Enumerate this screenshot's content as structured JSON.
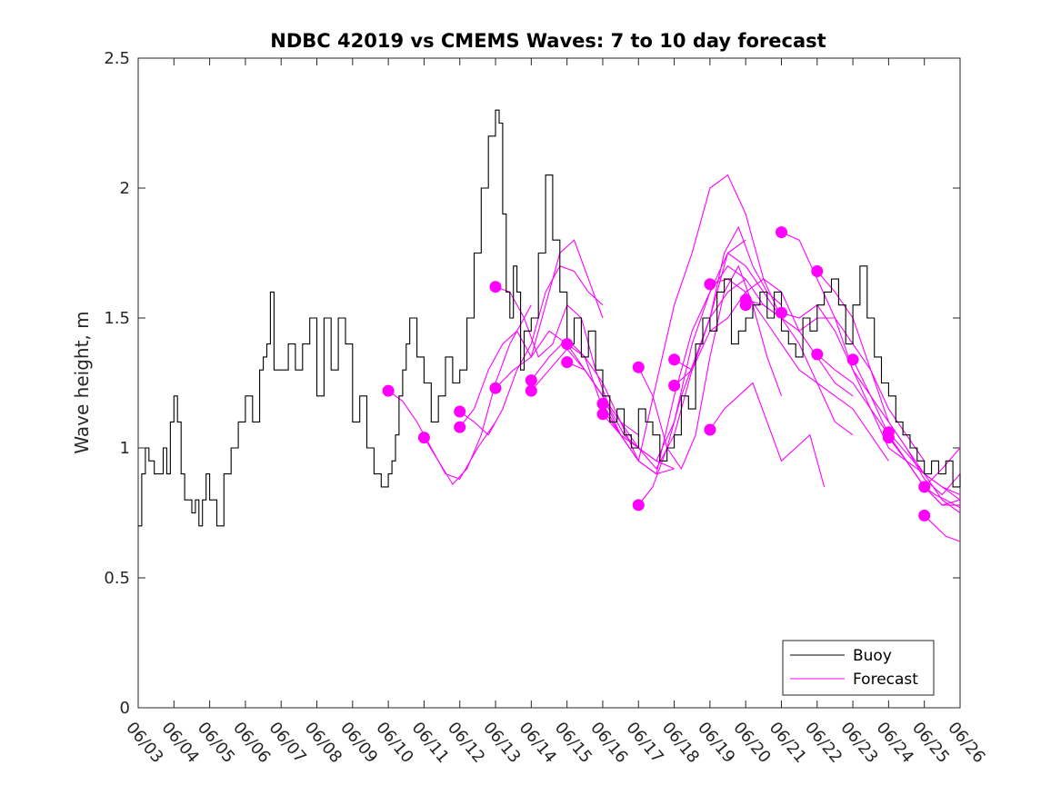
{
  "chart_data": {
    "type": "line",
    "title": "NDBC 42019 vs CMEMS Waves: 7 to 10 day forecast",
    "xlabel": "",
    "ylabel": "Wave height, m",
    "xlim": [
      "06/03",
      "06/26"
    ],
    "ylim": [
      0,
      2.5
    ],
    "yticks": [
      "0",
      "0.5",
      "1",
      "1.5",
      "2",
      "2.5"
    ],
    "xticks": [
      "06/03",
      "06/04",
      "06/05",
      "06/06",
      "06/07",
      "06/08",
      "06/09",
      "06/10",
      "06/11",
      "06/12",
      "06/13",
      "06/14",
      "06/15",
      "06/16",
      "06/17",
      "06/18",
      "06/19",
      "06/20",
      "06/21",
      "06/22",
      "06/23",
      "06/24",
      "06/25",
      "06/26"
    ],
    "grid": false,
    "legend": {
      "placement": "bottom-right",
      "entries": [
        "Buoy",
        "Forecast"
      ]
    },
    "colors": {
      "buoy": "#000000",
      "forecast": "#ff00ff"
    },
    "series": [
      {
        "name": "Buoy",
        "x": [
          0.0,
          0.1,
          0.2,
          0.3,
          0.45,
          0.6,
          0.7,
          0.8,
          0.9,
          1.0,
          1.1,
          1.2,
          1.3,
          1.4,
          1.5,
          1.6,
          1.7,
          1.8,
          1.9,
          2.0,
          2.2,
          2.4,
          2.6,
          2.8,
          3.0,
          3.2,
          3.4,
          3.5,
          3.6,
          3.7,
          3.8,
          4.0,
          4.2,
          4.4,
          4.6,
          4.8,
          5.0,
          5.2,
          5.4,
          5.6,
          5.8,
          6.0,
          6.2,
          6.4,
          6.6,
          6.8,
          7.0,
          7.1,
          7.2,
          7.3,
          7.4,
          7.5,
          7.6,
          7.8,
          8.0,
          8.2,
          8.4,
          8.6,
          8.8,
          9.0,
          9.2,
          9.4,
          9.6,
          9.8,
          10.0,
          10.1,
          10.2,
          10.3,
          10.4,
          10.5,
          10.6,
          10.7,
          10.8,
          11.0,
          11.2,
          11.4,
          11.6,
          11.8,
          12.0,
          12.2,
          12.4,
          12.6,
          12.8,
          13.0,
          13.2,
          13.4,
          13.6,
          13.8,
          14.0,
          14.2,
          14.4,
          14.6,
          14.8,
          15.0,
          15.2,
          15.4,
          15.6,
          15.8,
          16.0,
          16.2,
          16.4,
          16.6,
          16.8,
          17.0,
          17.2,
          17.4,
          17.6,
          17.8,
          18.0,
          18.2,
          18.4,
          18.6,
          18.8,
          19.0,
          19.2,
          19.4,
          19.6,
          19.8,
          20.0,
          20.2,
          20.4,
          20.6,
          20.8,
          21.0,
          21.2,
          21.4,
          21.6,
          21.8,
          22.0,
          22.2,
          22.4,
          22.6,
          22.8,
          23.0
        ],
        "values": [
          0.7,
          0.9,
          1.0,
          0.95,
          0.9,
          0.9,
          1.0,
          0.9,
          1.1,
          1.2,
          1.1,
          0.9,
          0.8,
          0.8,
          0.75,
          0.8,
          0.7,
          0.8,
          0.9,
          0.8,
          0.7,
          0.9,
          1.0,
          1.1,
          1.2,
          1.1,
          1.3,
          1.35,
          1.4,
          1.6,
          1.3,
          1.3,
          1.4,
          1.3,
          1.4,
          1.5,
          1.2,
          1.5,
          1.3,
          1.5,
          1.4,
          1.1,
          1.2,
          1.0,
          0.9,
          0.85,
          0.9,
          0.95,
          1.05,
          1.2,
          1.3,
          1.4,
          1.5,
          1.35,
          1.25,
          1.1,
          1.2,
          1.35,
          1.25,
          1.3,
          1.5,
          1.75,
          2.0,
          2.2,
          2.3,
          2.25,
          1.9,
          1.6,
          1.5,
          1.7,
          1.6,
          1.3,
          1.45,
          1.5,
          1.75,
          2.05,
          1.8,
          1.6,
          1.4,
          1.5,
          1.35,
          1.45,
          1.3,
          1.2,
          1.1,
          1.15,
          1.05,
          1.0,
          1.15,
          1.1,
          1.05,
          0.95,
          1.0,
          1.05,
          1.2,
          1.15,
          1.4,
          1.5,
          1.45,
          1.6,
          1.65,
          1.4,
          1.45,
          1.5,
          1.55,
          1.6,
          1.5,
          1.6,
          1.45,
          1.4,
          1.35,
          1.5,
          1.45,
          1.55,
          1.6,
          1.65,
          1.55,
          1.4,
          1.55,
          1.7,
          1.5,
          1.35,
          1.25,
          1.2,
          1.1,
          1.05,
          1.0,
          0.95,
          0.9,
          0.95,
          0.9,
          0.95,
          0.85,
          0.9
        ]
      },
      {
        "name": "Forecast",
        "lines": [
          {
            "x": [
              7.0,
              7.4,
              7.8,
              8.2,
              8.6,
              9.0,
              9.5,
              10.0
            ],
            "values": [
              1.22,
              1.18,
              1.1,
              1.0,
              0.9,
              0.88,
              1.0,
              1.1
            ]
          },
          {
            "x": [
              8.0,
              8.4,
              8.8,
              9.2,
              9.6,
              10.0,
              10.4,
              10.8,
              11.0
            ],
            "values": [
              1.04,
              0.95,
              0.86,
              0.92,
              1.05,
              1.25,
              1.4,
              1.5,
              1.55
            ]
          },
          {
            "x": [
              9.0,
              9.4,
              9.8,
              10.2,
              10.6,
              11.0,
              11.4,
              11.8,
              12.2,
              12.6,
              13.0
            ],
            "values": [
              1.14,
              1.1,
              1.05,
              1.15,
              1.3,
              1.4,
              1.6,
              1.7,
              1.68,
              1.6,
              1.55
            ]
          },
          {
            "x": [
              9.0,
              9.4,
              9.8,
              10.2,
              10.6,
              11.0,
              11.4,
              11.8,
              12.2,
              12.6,
              13.0
            ],
            "values": [
              1.08,
              1.15,
              1.3,
              1.4,
              1.45,
              1.35,
              1.55,
              1.75,
              1.8,
              1.65,
              1.5
            ]
          },
          {
            "x": [
              10.0,
              10.4,
              10.8,
              11.2,
              11.6,
              12.0,
              12.4,
              12.8,
              13.2,
              13.6,
              14.0
            ],
            "values": [
              1.62,
              1.6,
              1.5,
              1.35,
              1.4,
              1.55,
              1.5,
              1.3,
              1.15,
              1.05,
              1.0
            ]
          },
          {
            "x": [
              10.0,
              10.5,
              11.0,
              11.5,
              12.0,
              12.5,
              13.0,
              13.5,
              14.0
            ],
            "values": [
              1.23,
              1.3,
              1.35,
              1.45,
              1.4,
              1.3,
              1.2,
              1.1,
              1.05
            ]
          },
          {
            "x": [
              11.0,
              11.5,
              12.0,
              12.5,
              13.0,
              13.5,
              14.0,
              14.5,
              15.0
            ],
            "values": [
              1.26,
              1.35,
              1.42,
              1.35,
              1.15,
              1.05,
              1.0,
              0.95,
              0.92
            ]
          },
          {
            "x": [
              11.0,
              11.5,
              12.0,
              12.5,
              13.0,
              13.5,
              14.0,
              14.5,
              15.0
            ],
            "values": [
              1.22,
              1.3,
              1.38,
              1.3,
              1.2,
              1.1,
              0.95,
              0.9,
              0.92
            ]
          },
          {
            "x": [
              12.0,
              12.5,
              13.0,
              13.5,
              14.0,
              14.5,
              15.0,
              15.5,
              16.0,
              16.5,
              17.0
            ],
            "values": [
              1.4,
              1.35,
              1.25,
              1.1,
              1.0,
              0.92,
              1.05,
              1.3,
              1.5,
              1.75,
              1.8
            ]
          },
          {
            "x": [
              12.0,
              12.5,
              13.0,
              13.5,
              14.0,
              14.5,
              15.0,
              15.5,
              16.0,
              16.5,
              17.0
            ],
            "values": [
              1.33,
              1.3,
              1.2,
              1.05,
              0.95,
              0.9,
              1.2,
              1.45,
              1.6,
              1.7,
              1.65
            ]
          },
          {
            "x": [
              13.0,
              13.5,
              14.0,
              14.5,
              15.0,
              15.5,
              16.0,
              16.5,
              17.0,
              17.5,
              18.0
            ],
            "values": [
              1.17,
              1.05,
              0.95,
              1.25,
              1.55,
              1.75,
              2.0,
              2.05,
              1.9,
              1.65,
              1.5
            ]
          },
          {
            "x": [
              13.0,
              13.5,
              14.0,
              14.5,
              15.0,
              15.5,
              16.0,
              16.5,
              17.0,
              17.5,
              18.0
            ],
            "values": [
              1.13,
              1.05,
              1.0,
              0.95,
              1.1,
              1.4,
              1.6,
              1.75,
              1.7,
              1.6,
              1.5
            ]
          },
          {
            "x": [
              14.0,
              14.4,
              14.8,
              15.2,
              15.6,
              16.0,
              16.4,
              16.8,
              17.2,
              17.6,
              18.0
            ],
            "values": [
              1.31,
              1.2,
              1.0,
              0.92,
              1.05,
              1.35,
              1.6,
              1.7,
              1.55,
              1.35,
              1.2
            ]
          },
          {
            "x": [
              14.0,
              14.4,
              14.8,
              15.2,
              15.6,
              16.0,
              16.4,
              16.8,
              17.2,
              17.6,
              18.0
            ],
            "values": [
              0.78,
              0.85,
              1.0,
              1.2,
              1.35,
              1.5,
              1.75,
              1.85,
              1.7,
              1.6,
              1.55
            ]
          },
          {
            "x": [
              15.0,
              15.5,
              16.0,
              16.5,
              17.0,
              17.5,
              18.0,
              18.5,
              19.0,
              19.5,
              20.0
            ],
            "values": [
              1.34,
              1.3,
              1.45,
              1.5,
              1.6,
              1.65,
              1.6,
              1.45,
              1.35,
              1.25,
              1.2
            ]
          },
          {
            "x": [
              15.0,
              15.5,
              16.0,
              16.5,
              17.0,
              17.5,
              18.0,
              18.5,
              19.0,
              19.5,
              20.0
            ],
            "values": [
              1.24,
              1.3,
              1.5,
              1.6,
              1.65,
              1.55,
              1.5,
              1.4,
              1.25,
              1.1,
              1.05
            ]
          },
          {
            "x": [
              16.0,
              16.4,
              16.8,
              17.2,
              17.6,
              18.0,
              18.4,
              18.8,
              19.2
            ],
            "values": [
              1.07,
              1.15,
              1.2,
              1.25,
              1.1,
              0.95,
              1.0,
              1.05,
              0.85
            ]
          },
          {
            "x": [
              16.0,
              16.5,
              17.0,
              17.5,
              18.0,
              18.5,
              19.0,
              19.5,
              20.0,
              20.5,
              21.0
            ],
            "values": [
              1.63,
              1.65,
              1.6,
              1.5,
              1.4,
              1.3,
              1.25,
              1.2,
              1.15,
              1.05,
              0.95
            ]
          },
          {
            "x": [
              17.0,
              17.5,
              18.0,
              18.5,
              19.0,
              19.5,
              20.0,
              20.5,
              21.0,
              21.5,
              22.0
            ],
            "values": [
              1.57,
              1.55,
              1.5,
              1.45,
              1.5,
              1.5,
              1.4,
              1.3,
              1.15,
              1.05,
              0.95
            ]
          },
          {
            "x": [
              18.0,
              18.5,
              19.0,
              19.5,
              20.0,
              20.5,
              21.0,
              21.5,
              22.0,
              22.5,
              23.0
            ],
            "values": [
              1.83,
              1.8,
              1.65,
              1.5,
              1.3,
              1.2,
              1.1,
              1.0,
              0.9,
              0.8,
              0.75
            ]
          },
          {
            "x": [
              18.0,
              18.5,
              19.0,
              19.5,
              20.0,
              20.5,
              21.0,
              21.5,
              22.0,
              22.5,
              23.0
            ],
            "values": [
              1.52,
              1.5,
              1.55,
              1.45,
              1.3,
              1.15,
              1.0,
              0.95,
              0.9,
              0.85,
              0.8
            ]
          },
          {
            "x": [
              19.0,
              19.5,
              20.0,
              20.5,
              21.0,
              21.5,
              22.0,
              22.5,
              23.0
            ],
            "values": [
              1.68,
              1.6,
              1.5,
              1.3,
              1.1,
              1.0,
              0.88,
              0.82,
              0.9
            ]
          },
          {
            "x": [
              19.0,
              19.5,
              20.0,
              20.5,
              21.0,
              21.5,
              22.0,
              22.5,
              23.0
            ],
            "values": [
              1.36,
              1.3,
              1.25,
              1.15,
              1.05,
              0.95,
              0.85,
              0.92,
              1.0
            ]
          },
          {
            "x": [
              20.0,
              20.5,
              21.0,
              21.5,
              22.0,
              22.5,
              23.0
            ],
            "values": [
              1.34,
              1.2,
              1.05,
              0.95,
              0.85,
              0.78,
              0.8
            ]
          },
          {
            "x": [
              21.0,
              21.5,
              22.0,
              22.5,
              23.0
            ],
            "values": [
              1.04,
              0.95,
              0.85,
              0.78,
              0.78
            ]
          },
          {
            "x": [
              21.0,
              21.5,
              22.0,
              22.5,
              23.0
            ],
            "values": [
              1.06,
              0.98,
              0.9,
              0.85,
              0.82
            ]
          },
          {
            "x": [
              22.0,
              22.3,
              22.6,
              23.0
            ],
            "values": [
              0.85,
              0.82,
              0.8,
              0.77
            ]
          },
          {
            "x": [
              22.0,
              22.3,
              22.6,
              23.0
            ],
            "values": [
              0.74,
              0.7,
              0.66,
              0.64
            ]
          }
        ],
        "markers": {
          "x": [
            7.0,
            8.0,
            9.0,
            9.0,
            10.0,
            10.0,
            11.0,
            11.0,
            12.0,
            12.0,
            13.0,
            13.0,
            14.0,
            14.0,
            15.0,
            15.0,
            16.0,
            16.0,
            17.0,
            17.0,
            18.0,
            18.0,
            19.0,
            19.0,
            20.0,
            21.0,
            21.0,
            22.0,
            22.0
          ],
          "values": [
            1.22,
            1.04,
            1.14,
            1.08,
            1.62,
            1.23,
            1.26,
            1.22,
            1.4,
            1.33,
            1.17,
            1.13,
            1.31,
            0.78,
            1.34,
            1.24,
            1.07,
            1.63,
            1.57,
            1.55,
            1.83,
            1.52,
            1.68,
            1.36,
            1.34,
            1.04,
            1.06,
            0.85,
            0.74
          ]
        }
      }
    ]
  }
}
